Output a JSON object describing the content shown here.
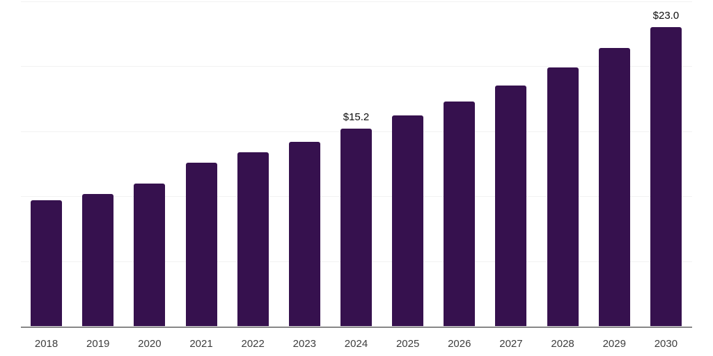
{
  "chart_data": {
    "type": "bar",
    "title": "",
    "categories": [
      "2018",
      "2019",
      "2020",
      "2021",
      "2022",
      "2023",
      "2024",
      "2025",
      "2026",
      "2027",
      "2028",
      "2029",
      "2030"
    ],
    "values": [
      9.7,
      10.2,
      11.0,
      12.6,
      13.4,
      14.2,
      15.2,
      16.2,
      17.3,
      18.5,
      19.9,
      21.4,
      23.0
    ],
    "annotations": [
      {
        "category": "2024",
        "text": "$15.2"
      },
      {
        "category": "2030",
        "text": "$23.0"
      }
    ],
    "xlabel": "",
    "ylabel": "",
    "ylim": [
      0,
      25
    ],
    "grid_step": 5,
    "grid_on": true,
    "legend_position": "none",
    "colors": {
      "bar": "#36114E",
      "gridline": "#f2f2f2",
      "axis": "#222222",
      "tick_label": "#3d3d3d",
      "data_label": "#0d0d0d",
      "background": "#ffffff"
    }
  }
}
